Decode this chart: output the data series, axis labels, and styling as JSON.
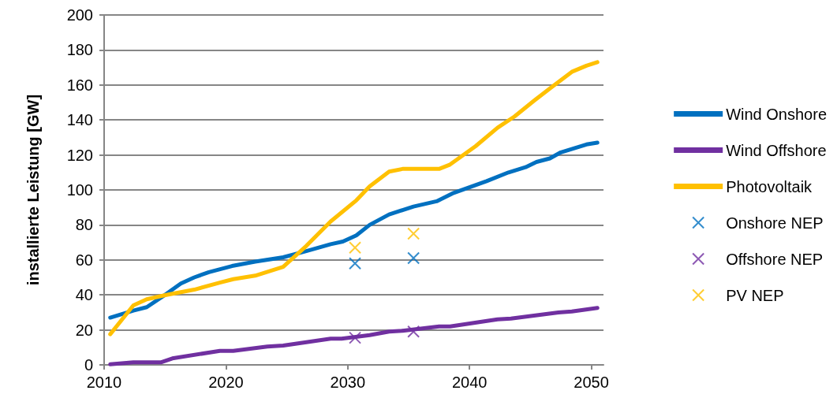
{
  "chart_data": {
    "type": "line",
    "ylabel": "installierte Leistung [GW]",
    "xlim": [
      2010,
      2051
    ],
    "xticks": [
      2010,
      2020,
      2030,
      2040,
      2050
    ],
    "ylim": [
      0,
      200
    ],
    "yticks": [
      0,
      20,
      40,
      60,
      80,
      100,
      120,
      140,
      160,
      180,
      200
    ],
    "grid": "y",
    "legend": "right",
    "line_style": "solid",
    "series": [
      {
        "name": "Wind Onshore",
        "color": "#0070c0",
        "marker": "none",
        "x": [
          2010.5,
          2012.4,
          2013.5,
          2015.1,
          2016.3,
          2017.4,
          2018.6,
          2020.5,
          2022.4,
          2024.7,
          2026.6,
          2028.6,
          2029.6,
          2030.7,
          2031.8,
          2033.4,
          2035.4,
          2037.3,
          2038.6,
          2041.4,
          2043.2,
          2044.6,
          2045.5,
          2046.6,
          2047.5,
          2049.6,
          2050.5
        ],
        "values": [
          27,
          31,
          33,
          40.5,
          46.5,
          50,
          53,
          56.5,
          59,
          61.5,
          65,
          69,
          70.5,
          74,
          80,
          86,
          90.5,
          93.5,
          98,
          105,
          110,
          113,
          116,
          118,
          121.5,
          126,
          127
        ]
      },
      {
        "name": "Wind Offshore",
        "color": "#7030a0",
        "marker": "none",
        "x": [
          2010.5,
          2012.4,
          2014.7,
          2015.6,
          2019.5,
          2020.6,
          2023.4,
          2024.7,
          2028.6,
          2029.5,
          2031.8,
          2033.4,
          2034.5,
          2037.5,
          2038.4,
          2042.3,
          2043.4,
          2047.3,
          2048.4,
          2050.5
        ],
        "values": [
          0.3,
          1.5,
          1.5,
          3.7,
          8,
          8,
          10.5,
          11,
          15,
          15,
          17,
          19,
          19.5,
          22,
          22,
          26,
          26.5,
          30,
          30.5,
          32.5
        ]
      },
      {
        "name": "Photovoltaik",
        "color": "#ffc000",
        "marker": "none",
        "x": [
          2010.5,
          2012.4,
          2013.5,
          2015.1,
          2017.4,
          2019.5,
          2020.6,
          2022.4,
          2024.7,
          2026.6,
          2028.6,
          2030.7,
          2031.8,
          2033.4,
          2034.5,
          2037.5,
          2038.4,
          2040.5,
          2042.3,
          2043.7,
          2045.3,
          2046.6,
          2048.4,
          2049.6,
          2050.5
        ],
        "values": [
          17.5,
          34,
          37.5,
          40,
          43,
          47,
          49,
          51,
          56,
          68,
          82,
          94,
          102,
          110.5,
          112,
          112,
          114.5,
          125,
          135.5,
          142,
          151,
          158,
          167.5,
          171,
          173
        ]
      },
      {
        "name": "Onshore NEP",
        "type": "scatter",
        "color": "#0070c0",
        "marker": "cross",
        "x": [
          2030.6,
          2035.4
        ],
        "values": [
          58,
          61
        ]
      },
      {
        "name": "Offshore NEP",
        "type": "scatter",
        "color": "#7030a0",
        "marker": "cross",
        "x": [
          2030.6,
          2035.4
        ],
        "values": [
          15.5,
          19
        ]
      },
      {
        "name": "PV NEP",
        "type": "scatter",
        "color": "#ffc000",
        "marker": "cross",
        "x": [
          2030.6,
          2035.4
        ],
        "values": [
          67,
          75
        ]
      }
    ]
  }
}
